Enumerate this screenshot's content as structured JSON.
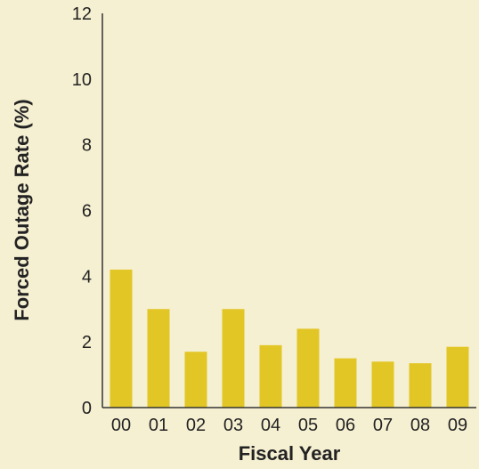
{
  "colors": {
    "background": "#f6f0d2",
    "bar": "#e2c626",
    "axis": "#333333",
    "text": "#222222"
  },
  "chart_data": {
    "type": "bar",
    "title": "",
    "xlabel": "Fiscal Year",
    "ylabel": "Forced Outage Rate (%)",
    "categories": [
      "00",
      "01",
      "02",
      "03",
      "04",
      "05",
      "06",
      "07",
      "08",
      "09"
    ],
    "values": [
      4.2,
      3.0,
      1.7,
      3.0,
      1.9,
      2.4,
      1.5,
      1.4,
      1.35,
      1.85
    ],
    "ylim": [
      0,
      12
    ],
    "yticks": [
      "0",
      "2",
      "4",
      "6",
      "8",
      "10",
      "12"
    ],
    "grid": false,
    "legend": "none"
  }
}
